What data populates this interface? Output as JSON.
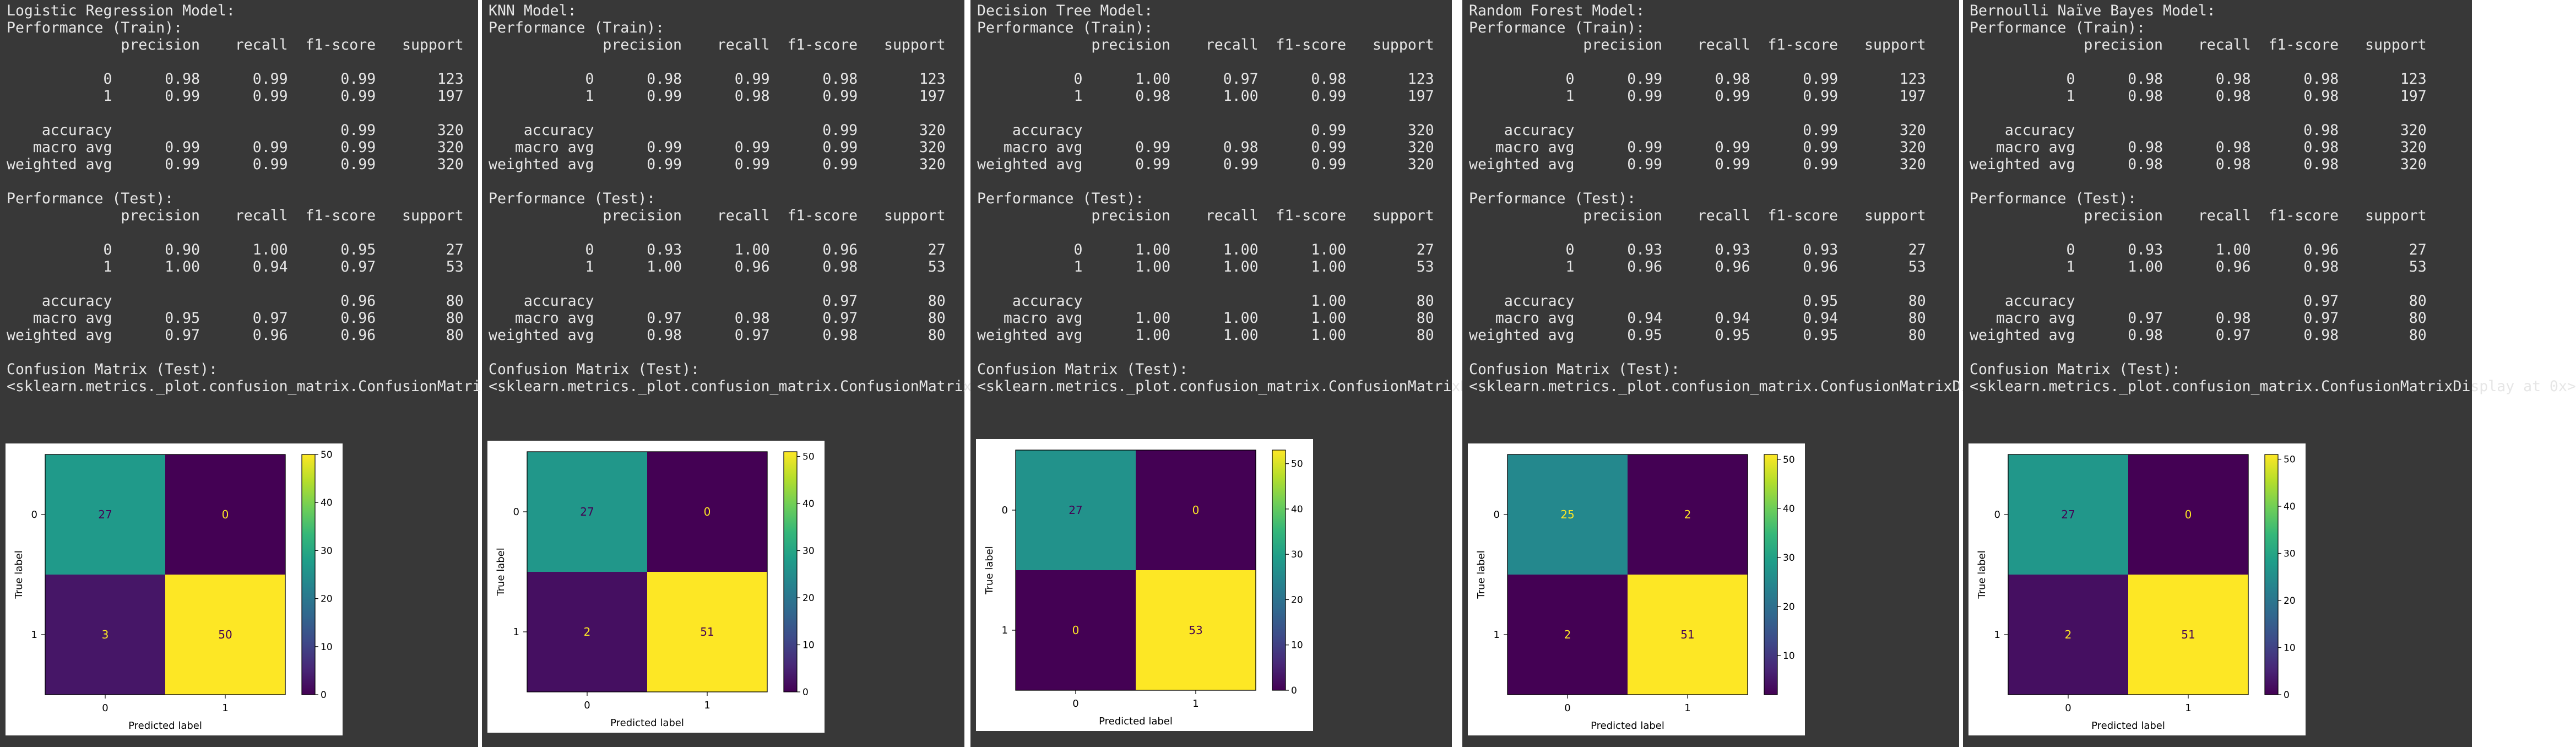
{
  "headers": {
    "performance_train": "Performance (Train):",
    "performance_test": "Performance (Test):",
    "confusion_title": "Confusion Matrix (Test):",
    "confusion_repr": "<sklearn.metrics._plot.confusion_matrix.ConfusionMatrixDisplay at 0x>",
    "cols": [
      "precision",
      "recall",
      "f1-score",
      "support"
    ],
    "row_labels": [
      "0",
      "1",
      "accuracy",
      "macro avg",
      "weighted avg"
    ],
    "xlabel": "Predicted label",
    "ylabel": "True label",
    "class_ticks": [
      "0",
      "1"
    ]
  },
  "colors": {
    "panel_bg": "#383838",
    "text": "#e6e6e6"
  },
  "models": [
    {
      "title": "Logistic Regression Model:",
      "train": {
        "r0": [
          "0.98",
          "0.99",
          "0.99",
          "123"
        ],
        "r1": [
          "0.99",
          "0.99",
          "0.99",
          "197"
        ],
        "accuracy": [
          "0.99",
          "320"
        ],
        "macro": [
          "0.99",
          "0.99",
          "0.99",
          "320"
        ],
        "weighted": [
          "0.99",
          "0.99",
          "0.99",
          "320"
        ]
      },
      "test": {
        "r0": [
          "0.90",
          "1.00",
          "0.95",
          "27"
        ],
        "r1": [
          "1.00",
          "0.94",
          "0.97",
          "53"
        ],
        "accuracy": [
          "0.96",
          "80"
        ],
        "macro": [
          "0.95",
          "0.97",
          "0.96",
          "80"
        ],
        "weighted": [
          "0.97",
          "0.96",
          "0.96",
          "80"
        ]
      },
      "chart_data": {
        "type": "heatmap",
        "x": [
          "0",
          "1"
        ],
        "y": [
          "0",
          "1"
        ],
        "values": [
          [
            27,
            0
          ],
          [
            3,
            50
          ]
        ],
        "xlabel": "Predicted label",
        "ylabel": "True label",
        "colorbar_ticks": [
          0,
          10,
          20,
          30,
          40,
          50
        ],
        "vmin": 0,
        "vmax": 50
      }
    },
    {
      "title": "KNN Model:",
      "train": {
        "r0": [
          "0.98",
          "0.99",
          "0.98",
          "123"
        ],
        "r1": [
          "0.99",
          "0.98",
          "0.99",
          "197"
        ],
        "accuracy": [
          "0.99",
          "320"
        ],
        "macro": [
          "0.99",
          "0.99",
          "0.99",
          "320"
        ],
        "weighted": [
          "0.99",
          "0.99",
          "0.99",
          "320"
        ]
      },
      "test": {
        "r0": [
          "0.93",
          "1.00",
          "0.96",
          "27"
        ],
        "r1": [
          "1.00",
          "0.96",
          "0.98",
          "53"
        ],
        "accuracy": [
          "0.97",
          "80"
        ],
        "macro": [
          "0.97",
          "0.98",
          "0.97",
          "80"
        ],
        "weighted": [
          "0.98",
          "0.97",
          "0.98",
          "80"
        ]
      },
      "chart_data": {
        "type": "heatmap",
        "x": [
          "0",
          "1"
        ],
        "y": [
          "0",
          "1"
        ],
        "values": [
          [
            27,
            0
          ],
          [
            2,
            51
          ]
        ],
        "xlabel": "Predicted label",
        "ylabel": "True label",
        "colorbar_ticks": [
          0,
          10,
          20,
          30,
          40,
          50
        ],
        "vmin": 0,
        "vmax": 51
      }
    },
    {
      "title": "Decision Tree Model:",
      "train": {
        "r0": [
          "1.00",
          "0.97",
          "0.98",
          "123"
        ],
        "r1": [
          "0.98",
          "1.00",
          "0.99",
          "197"
        ],
        "accuracy": [
          "0.99",
          "320"
        ],
        "macro": [
          "0.99",
          "0.98",
          "0.99",
          "320"
        ],
        "weighted": [
          "0.99",
          "0.99",
          "0.99",
          "320"
        ]
      },
      "test": {
        "r0": [
          "1.00",
          "1.00",
          "1.00",
          "27"
        ],
        "r1": [
          "1.00",
          "1.00",
          "1.00",
          "53"
        ],
        "accuracy": [
          "1.00",
          "80"
        ],
        "macro": [
          "1.00",
          "1.00",
          "1.00",
          "80"
        ],
        "weighted": [
          "1.00",
          "1.00",
          "1.00",
          "80"
        ]
      },
      "chart_data": {
        "type": "heatmap",
        "x": [
          "0",
          "1"
        ],
        "y": [
          "0",
          "1"
        ],
        "values": [
          [
            27,
            0
          ],
          [
            0,
            53
          ]
        ],
        "xlabel": "Predicted label",
        "ylabel": "True label",
        "colorbar_ticks": [
          0,
          10,
          20,
          30,
          40,
          50
        ],
        "vmin": 0,
        "vmax": 53
      }
    },
    {
      "title": "Random Forest Model:",
      "train": {
        "r0": [
          "0.99",
          "0.98",
          "0.99",
          "123"
        ],
        "r1": [
          "0.99",
          "0.99",
          "0.99",
          "197"
        ],
        "accuracy": [
          "0.99",
          "320"
        ],
        "macro": [
          "0.99",
          "0.99",
          "0.99",
          "320"
        ],
        "weighted": [
          "0.99",
          "0.99",
          "0.99",
          "320"
        ]
      },
      "test": {
        "r0": [
          "0.93",
          "0.93",
          "0.93",
          "27"
        ],
        "r1": [
          "0.96",
          "0.96",
          "0.96",
          "53"
        ],
        "accuracy": [
          "0.95",
          "80"
        ],
        "macro": [
          "0.94",
          "0.94",
          "0.94",
          "80"
        ],
        "weighted": [
          "0.95",
          "0.95",
          "0.95",
          "80"
        ]
      },
      "chart_data": {
        "type": "heatmap",
        "x": [
          "0",
          "1"
        ],
        "y": [
          "0",
          "1"
        ],
        "values": [
          [
            25,
            2
          ],
          [
            2,
            51
          ]
        ],
        "xlabel": "Predicted label",
        "ylabel": "True label",
        "colorbar_ticks": [
          10,
          20,
          30,
          40,
          50
        ],
        "vmin": 2,
        "vmax": 51
      }
    },
    {
      "title": "Bernoulli Naïve Bayes Model:",
      "train": {
        "r0": [
          "0.98",
          "0.98",
          "0.98",
          "123"
        ],
        "r1": [
          "0.98",
          "0.98",
          "0.98",
          "197"
        ],
        "accuracy": [
          "0.98",
          "320"
        ],
        "macro": [
          "0.98",
          "0.98",
          "0.98",
          "320"
        ],
        "weighted": [
          "0.98",
          "0.98",
          "0.98",
          "320"
        ]
      },
      "test": {
        "r0": [
          "0.93",
          "1.00",
          "0.96",
          "27"
        ],
        "r1": [
          "1.00",
          "0.96",
          "0.98",
          "53"
        ],
        "accuracy": [
          "0.97",
          "80"
        ],
        "macro": [
          "0.97",
          "0.98",
          "0.97",
          "80"
        ],
        "weighted": [
          "0.98",
          "0.97",
          "0.98",
          "80"
        ]
      },
      "chart_data": {
        "type": "heatmap",
        "x": [
          "0",
          "1"
        ],
        "y": [
          "0",
          "1"
        ],
        "values": [
          [
            27,
            0
          ],
          [
            2,
            51
          ]
        ],
        "xlabel": "Predicted label",
        "ylabel": "True label",
        "colorbar_ticks": [
          0,
          10,
          20,
          30,
          40,
          50
        ],
        "vmin": 0,
        "vmax": 51
      }
    }
  ]
}
